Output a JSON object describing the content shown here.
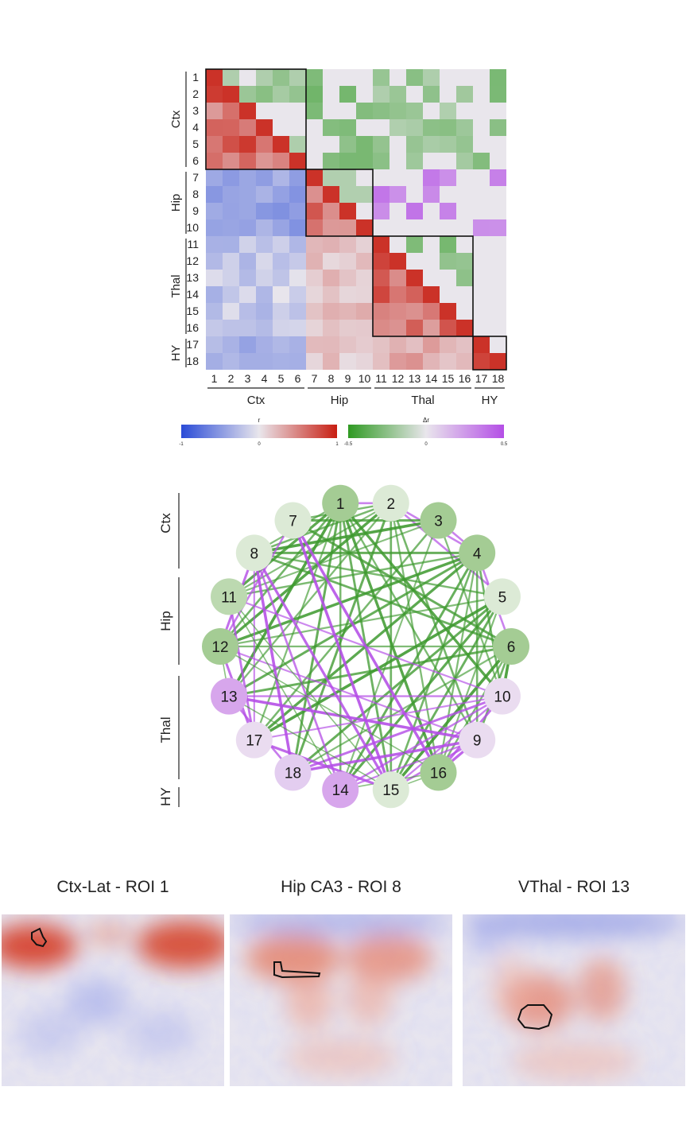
{
  "roi_labels": [
    "1",
    "2",
    "3",
    "4",
    "5",
    "6",
    "7",
    "8",
    "9",
    "10",
    "11",
    "12",
    "13",
    "14",
    "15",
    "16",
    "17",
    "18"
  ],
  "regions": [
    {
      "name": "Ctx",
      "start": 1,
      "end": 6
    },
    {
      "name": "Hip",
      "start": 7,
      "end": 10
    },
    {
      "name": "Thal",
      "start": 11,
      "end": 16
    },
    {
      "name": "HY",
      "start": 17,
      "end": 18
    }
  ],
  "matrix": {
    "lower_triangle_scale": "r",
    "upper_triangle_scale": "Δr"
  },
  "colorbars": {
    "r": {
      "label": "r",
      "ticks": [
        "-1",
        "0",
        "1"
      ],
      "colors": [
        "#2a4bd7",
        "#e9e6ec",
        "#c81e12"
      ]
    },
    "dr": {
      "label": "Δr",
      "ticks": [
        "-0.5",
        "0",
        "0.5"
      ],
      "colors": [
        "#2f9a22",
        "#e9e6ec",
        "#b44ee6"
      ]
    }
  },
  "network": {
    "node_labels": [
      "1",
      "2",
      "3",
      "4",
      "5",
      "6",
      "10",
      "9",
      "16",
      "15",
      "14",
      "18",
      "17",
      "13",
      "12",
      "11",
      "8",
      "7"
    ],
    "node_colors": {
      "1": "#a4cc94",
      "2": "#dcead6",
      "3": "#a4cc94",
      "4": "#a4cc94",
      "5": "#dcead6",
      "6": "#a4cc94",
      "7": "#dcead6",
      "8": "#dcead6",
      "9": "#eadcf0",
      "10": "#eadcf0",
      "11": "#bcd9b0",
      "12": "#a4cc94",
      "13": "#d7a6ec",
      "14": "#d7a6ec",
      "15": "#dcead6",
      "16": "#a4cc94",
      "17": "#eadcf0",
      "18": "#e3cdf0"
    },
    "edge_colors": {
      "negative": "#3f9a30",
      "positive": "#b44ee6"
    }
  },
  "panels": [
    {
      "title": "Ctx-Lat - ROI 1"
    },
    {
      "title": "Hip CA3 - ROI 8"
    },
    {
      "title": "VThal - ROI 13"
    }
  ]
}
